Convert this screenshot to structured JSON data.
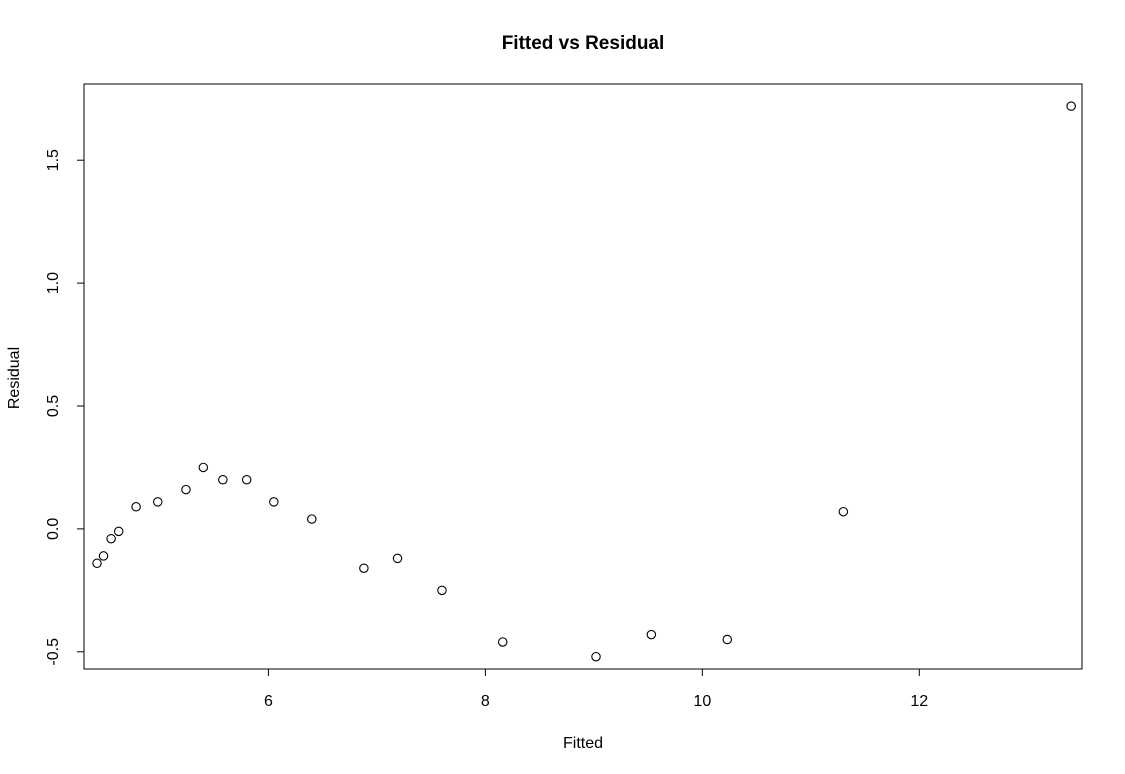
{
  "chart_data": {
    "type": "scatter",
    "title": "Fitted vs Residual",
    "xlabel": "Fitted",
    "ylabel": "Residual",
    "xlim": [
      4.3,
      13.5
    ],
    "ylim": [
      -0.57,
      1.81
    ],
    "x_ticks": [
      6,
      8,
      10,
      12
    ],
    "x_tick_labels": [
      "6",
      "8",
      "10",
      "12"
    ],
    "y_ticks": [
      -0.5,
      0.0,
      0.5,
      1.0,
      1.5
    ],
    "y_tick_labels": [
      "-0.5",
      "0.0",
      "0.5",
      "1.0",
      "1.5"
    ],
    "grid": false,
    "marker": "open-circle",
    "x": [
      4.42,
      4.48,
      4.55,
      4.62,
      4.78,
      4.98,
      5.24,
      5.4,
      5.58,
      5.8,
      6.05,
      6.4,
      6.88,
      7.19,
      7.6,
      8.16,
      9.02,
      9.53,
      10.23,
      11.3,
      13.4
    ],
    "y": [
      -0.14,
      -0.11,
      -0.04,
      -0.01,
      0.09,
      0.11,
      0.16,
      0.25,
      0.2,
      0.2,
      0.11,
      0.04,
      -0.16,
      -0.12,
      -0.25,
      -0.46,
      -0.52,
      -0.43,
      -0.45,
      0.07,
      1.72
    ]
  }
}
